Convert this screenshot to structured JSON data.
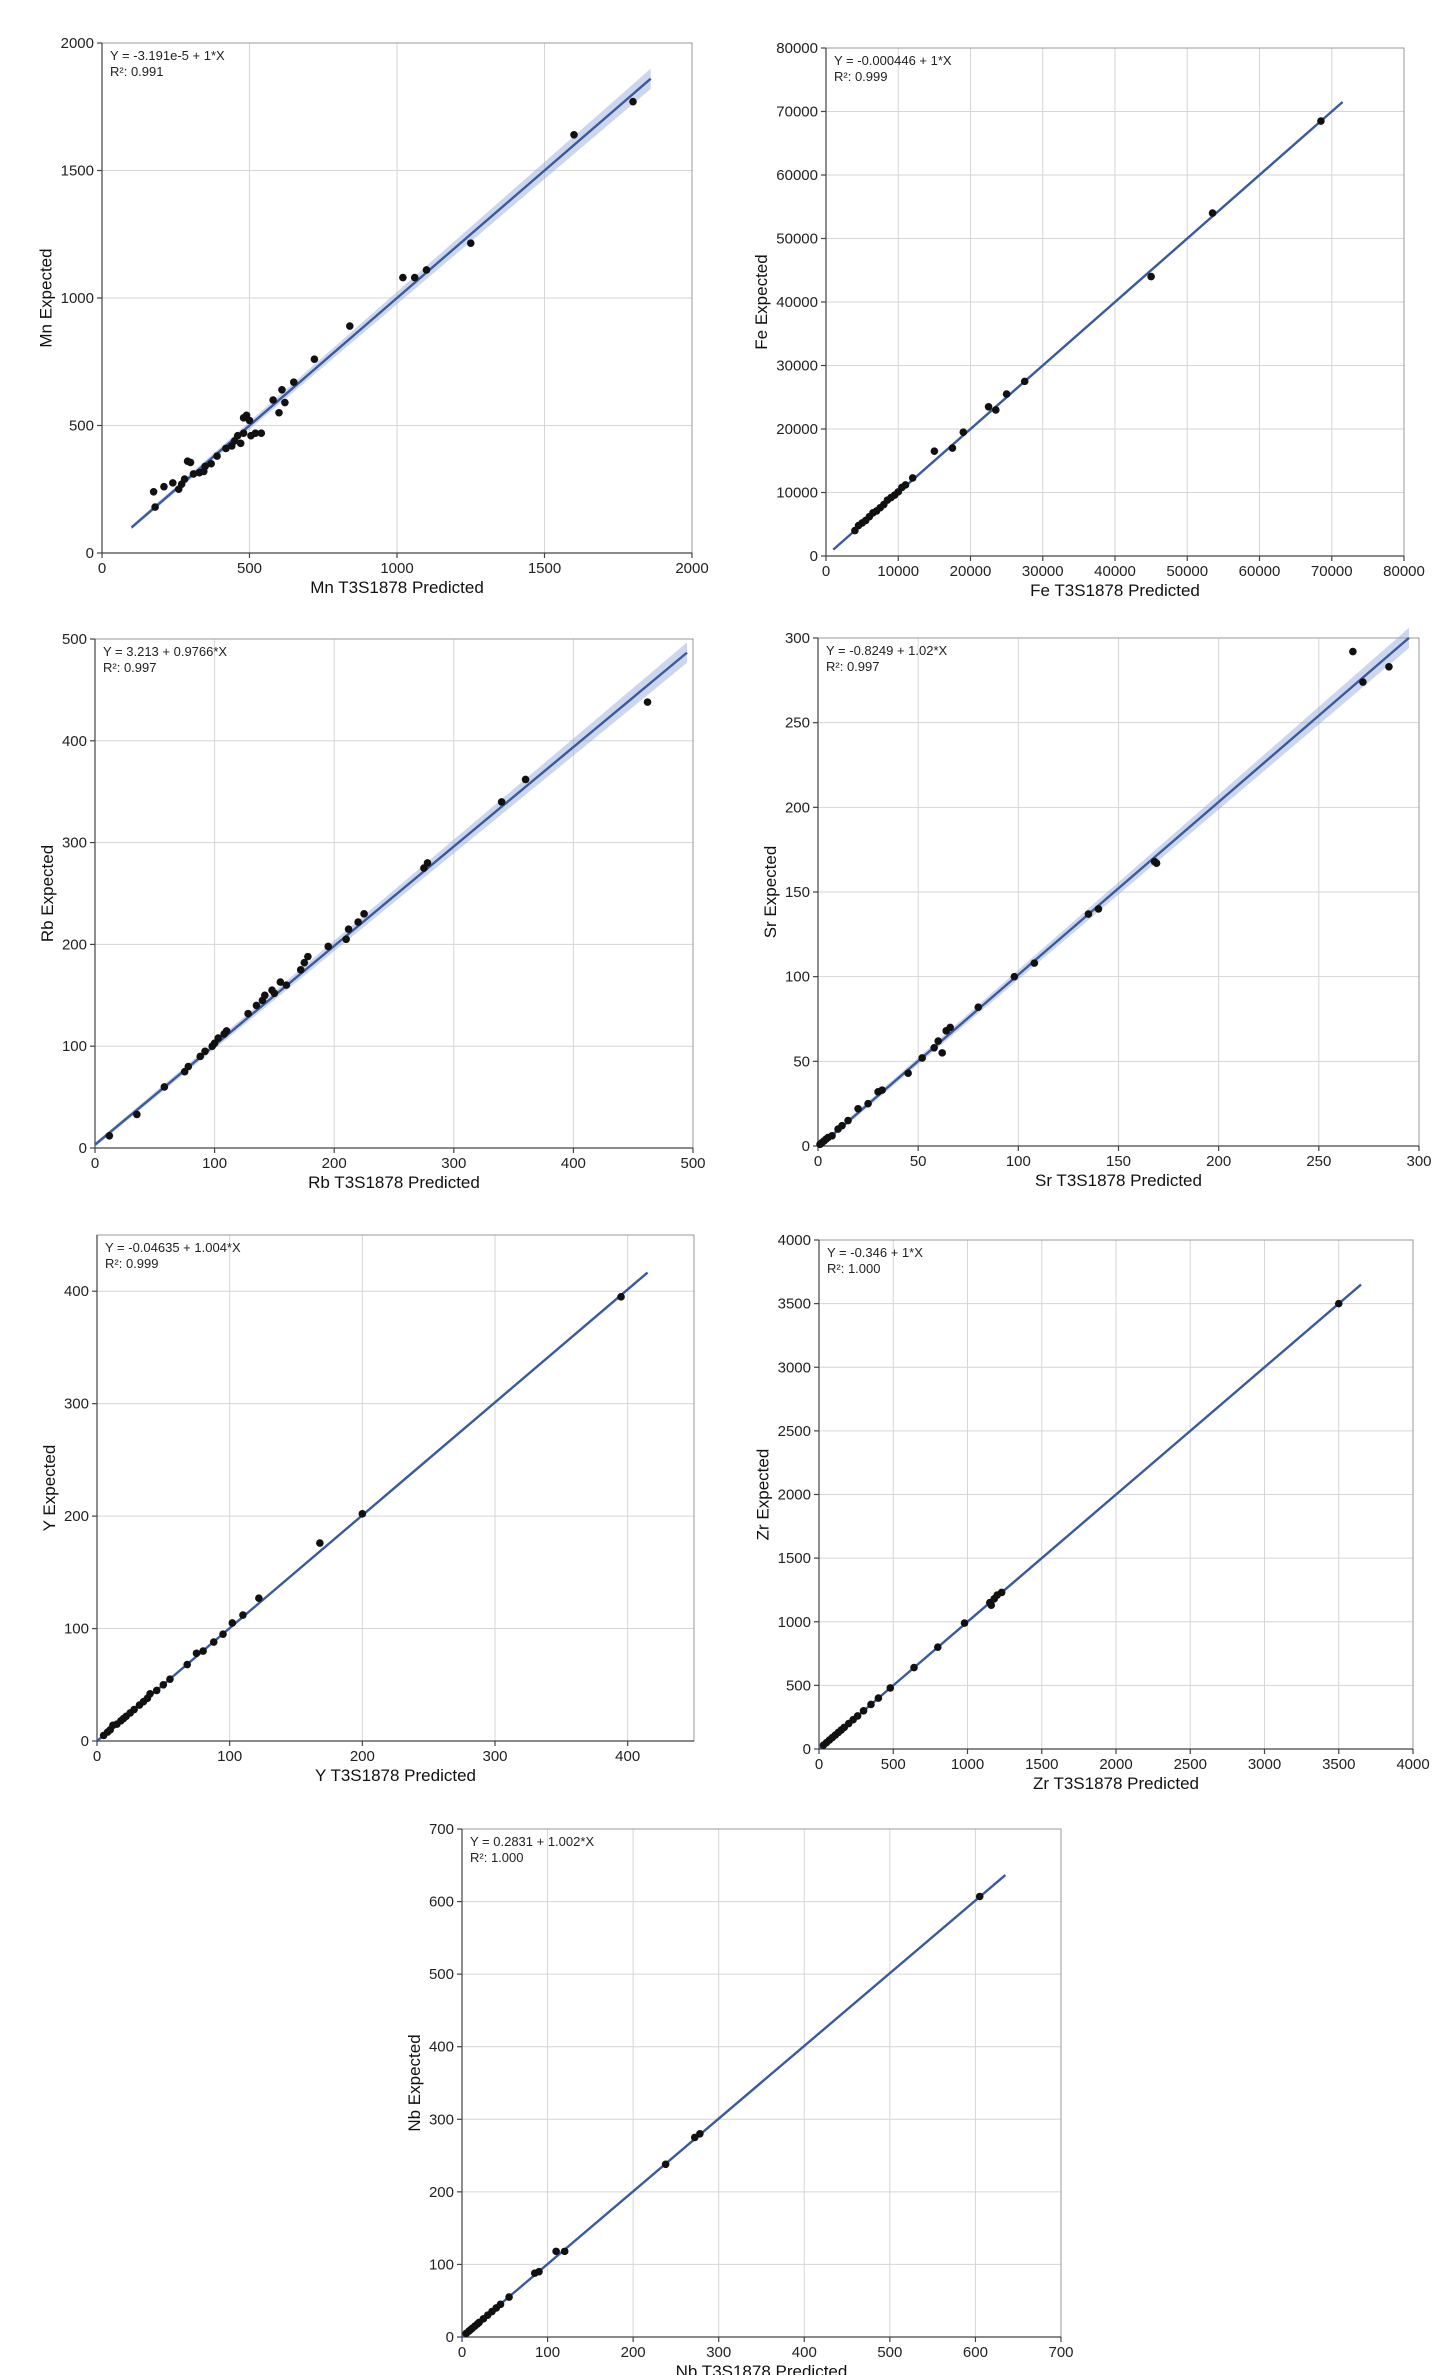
{
  "chart_data": [
    {
      "type": "scatter",
      "equation": "Y = -3.191e-5 + 1*X",
      "r2": "R²: 0.991",
      "xlabel": "Mn T3S1878 Predicted",
      "ylabel": "Mn Expected",
      "xlim": [
        0,
        2000
      ],
      "ylim": [
        0,
        2000
      ],
      "xticks": [
        0,
        500,
        1000,
        1500,
        2000
      ],
      "yticks": [
        0,
        500,
        1000,
        1500,
        2000
      ],
      "fit": {
        "intercept": -3.191e-05,
        "slope": 1,
        "x_range": [
          100,
          1860
        ]
      },
      "band": true,
      "grid": true,
      "points": [
        [
          175,
          240
        ],
        [
          180,
          180
        ],
        [
          210,
          260
        ],
        [
          240,
          275
        ],
        [
          260,
          250
        ],
        [
          270,
          270
        ],
        [
          280,
          290
        ],
        [
          290,
          360
        ],
        [
          300,
          355
        ],
        [
          310,
          310
        ],
        [
          330,
          315
        ],
        [
          345,
          320
        ],
        [
          350,
          340
        ],
        [
          370,
          350
        ],
        [
          390,
          380
        ],
        [
          420,
          410
        ],
        [
          440,
          420
        ],
        [
          450,
          440
        ],
        [
          460,
          460
        ],
        [
          470,
          430
        ],
        [
          480,
          470
        ],
        [
          480,
          530
        ],
        [
          490,
          540
        ],
        [
          500,
          520
        ],
        [
          505,
          460
        ],
        [
          520,
          470
        ],
        [
          540,
          470
        ],
        [
          580,
          600
        ],
        [
          600,
          550
        ],
        [
          610,
          640
        ],
        [
          620,
          590
        ],
        [
          650,
          670
        ],
        [
          720,
          760
        ],
        [
          840,
          890
        ],
        [
          1020,
          1080
        ],
        [
          1060,
          1080
        ],
        [
          1100,
          1110
        ],
        [
          1250,
          1215
        ],
        [
          1600,
          1640
        ],
        [
          1800,
          1770
        ]
      ]
    },
    {
      "type": "scatter",
      "equation": "Y = -0.000446 + 1*X",
      "r2": "R²: 0.999",
      "xlabel": "Fe T3S1878 Predicted",
      "ylabel": "Fe Expected",
      "xlim": [
        0,
        80000
      ],
      "ylim": [
        0,
        80000
      ],
      "xticks": [
        0,
        10000,
        20000,
        30000,
        40000,
        50000,
        60000,
        70000,
        80000
      ],
      "yticks": [
        0,
        10000,
        20000,
        30000,
        40000,
        50000,
        60000,
        70000,
        80000
      ],
      "fit": {
        "intercept": -0.000446,
        "slope": 1,
        "x_range": [
          1000,
          71500
        ]
      },
      "band": false,
      "grid": true,
      "points": [
        [
          4000,
          4000
        ],
        [
          4500,
          4800
        ],
        [
          5000,
          5200
        ],
        [
          5500,
          5600
        ],
        [
          6000,
          6200
        ],
        [
          6500,
          6800
        ],
        [
          7000,
          7100
        ],
        [
          7500,
          7600
        ],
        [
          8000,
          8100
        ],
        [
          8500,
          8800
        ],
        [
          9000,
          9200
        ],
        [
          9500,
          9600
        ],
        [
          10000,
          10100
        ],
        [
          10500,
          10800
        ],
        [
          11000,
          11200
        ],
        [
          12000,
          12300
        ],
        [
          15000,
          16500
        ],
        [
          17500,
          17000
        ],
        [
          19000,
          19500
        ],
        [
          22500,
          23500
        ],
        [
          23500,
          23000
        ],
        [
          25000,
          25500
        ],
        [
          27500,
          27500
        ],
        [
          45000,
          44000
        ],
        [
          53500,
          54000
        ],
        [
          68500,
          68500
        ]
      ]
    },
    {
      "type": "scatter",
      "equation": "Y = 3.213 + 0.9766*X",
      "r2": "R²: 0.997",
      "xlabel": "Rb T3S1878 Predicted",
      "ylabel": "Rb Expected",
      "xlim": [
        0,
        500
      ],
      "ylim": [
        0,
        500
      ],
      "xticks": [
        0,
        100,
        200,
        300,
        400,
        500
      ],
      "yticks": [
        0,
        100,
        200,
        300,
        400,
        500
      ],
      "fit": {
        "intercept": 3.213,
        "slope": 0.9766,
        "x_range": [
          0,
          495
        ]
      },
      "band": true,
      "grid": true,
      "points": [
        [
          12,
          12
        ],
        [
          35,
          33
        ],
        [
          58,
          60
        ],
        [
          75,
          75
        ],
        [
          78,
          80
        ],
        [
          88,
          90
        ],
        [
          92,
          95
        ],
        [
          98,
          100
        ],
        [
          100,
          103
        ],
        [
          103,
          108
        ],
        [
          108,
          112
        ],
        [
          110,
          115
        ],
        [
          128,
          132
        ],
        [
          135,
          140
        ],
        [
          140,
          145
        ],
        [
          142,
          150
        ],
        [
          148,
          155
        ],
        [
          150,
          152
        ],
        [
          155,
          163
        ],
        [
          160,
          160
        ],
        [
          172,
          175
        ],
        [
          175,
          182
        ],
        [
          178,
          188
        ],
        [
          195,
          198
        ],
        [
          210,
          205
        ],
        [
          212,
          215
        ],
        [
          220,
          222
        ],
        [
          225,
          230
        ],
        [
          275,
          275
        ],
        [
          278,
          280
        ],
        [
          340,
          340
        ],
        [
          360,
          362
        ],
        [
          462,
          438
        ]
      ]
    },
    {
      "type": "scatter",
      "equation": "Y = -0.8249 + 1.02*X",
      "r2": "R²: 0.997",
      "xlabel": "Sr T3S1878 Predicted",
      "ylabel": "Sr Expected",
      "xlim": [
        0,
        300
      ],
      "ylim": [
        0,
        300
      ],
      "xticks": [
        0,
        50,
        100,
        150,
        200,
        250,
        300
      ],
      "yticks": [
        0,
        50,
        100,
        150,
        200,
        250,
        300
      ],
      "fit": {
        "intercept": -0.8249,
        "slope": 1.02,
        "x_range": [
          0,
          295
        ]
      },
      "band": true,
      "grid": true,
      "points": [
        [
          1,
          1
        ],
        [
          2,
          2
        ],
        [
          3,
          3
        ],
        [
          4,
          4
        ],
        [
          5,
          5
        ],
        [
          7,
          6
        ],
        [
          10,
          10
        ],
        [
          12,
          12
        ],
        [
          15,
          15
        ],
        [
          20,
          22
        ],
        [
          25,
          25
        ],
        [
          30,
          32
        ],
        [
          32,
          33
        ],
        [
          45,
          43
        ],
        [
          52,
          52
        ],
        [
          58,
          58
        ],
        [
          60,
          62
        ],
        [
          62,
          55
        ],
        [
          64,
          68
        ],
        [
          66,
          70
        ],
        [
          80,
          82
        ],
        [
          98,
          100
        ],
        [
          108,
          108
        ],
        [
          135,
          137
        ],
        [
          140,
          140
        ],
        [
          168,
          168
        ],
        [
          169,
          167
        ],
        [
          267,
          292
        ],
        [
          272,
          274
        ],
        [
          285,
          283
        ]
      ]
    },
    {
      "type": "scatter",
      "equation": "Y = -0.04635 + 1.004*X",
      "r2": "R²: 0.999",
      "xlabel": "Y T3S1878 Predicted",
      "ylabel": "Y Expected",
      "xlim": [
        0,
        450
      ],
      "ylim": [
        0,
        450
      ],
      "xticks": [
        0,
        100,
        200,
        300,
        400
      ],
      "yticks": [
        0,
        100,
        200,
        300,
        400
      ],
      "fit": {
        "intercept": -0.04635,
        "slope": 1.004,
        "x_range": [
          0,
          415
        ]
      },
      "band": false,
      "grid": true,
      "points": [
        [
          5,
          5
        ],
        [
          8,
          8
        ],
        [
          10,
          10
        ],
        [
          12,
          14
        ],
        [
          15,
          15
        ],
        [
          18,
          18
        ],
        [
          20,
          20
        ],
        [
          22,
          22
        ],
        [
          25,
          25
        ],
        [
          28,
          28
        ],
        [
          32,
          32
        ],
        [
          35,
          35
        ],
        [
          38,
          38
        ],
        [
          40,
          42
        ],
        [
          45,
          45
        ],
        [
          50,
          50
        ],
        [
          55,
          55
        ],
        [
          68,
          68
        ],
        [
          75,
          78
        ],
        [
          80,
          80
        ],
        [
          88,
          88
        ],
        [
          95,
          95
        ],
        [
          102,
          105
        ],
        [
          110,
          112
        ],
        [
          122,
          127
        ],
        [
          168,
          176
        ],
        [
          200,
          202
        ],
        [
          395,
          395
        ]
      ]
    },
    {
      "type": "scatter",
      "equation": "Y = -0.346 + 1*X",
      "r2": "R²: 1.000",
      "xlabel": "Zr T3S1878 Predicted",
      "ylabel": "Zr Expected",
      "xlim": [
        0,
        4000
      ],
      "ylim": [
        0,
        4000
      ],
      "xticks": [
        0,
        500,
        1000,
        1500,
        2000,
        2500,
        3000,
        3500,
        4000
      ],
      "yticks": [
        0,
        500,
        1000,
        1500,
        2000,
        2500,
        3000,
        3500,
        4000
      ],
      "fit": {
        "intercept": -0.346,
        "slope": 1,
        "x_range": [
          0,
          3650
        ]
      },
      "band": false,
      "grid": true,
      "points": [
        [
          30,
          30
        ],
        [
          50,
          50
        ],
        [
          70,
          70
        ],
        [
          90,
          90
        ],
        [
          110,
          110
        ],
        [
          130,
          130
        ],
        [
          150,
          150
        ],
        [
          170,
          170
        ],
        [
          200,
          200
        ],
        [
          230,
          230
        ],
        [
          260,
          260
        ],
        [
          300,
          300
        ],
        [
          350,
          350
        ],
        [
          400,
          400
        ],
        [
          480,
          480
        ],
        [
          640,
          640
        ],
        [
          800,
          800
        ],
        [
          980,
          990
        ],
        [
          1150,
          1150
        ],
        [
          1160,
          1130
        ],
        [
          1180,
          1180
        ],
        [
          1200,
          1210
        ],
        [
          1230,
          1230
        ],
        [
          3500,
          3500
        ]
      ]
    },
    {
      "type": "scatter",
      "equation": "Y = 0.2831 + 1.002*X",
      "r2": "R²: 1.000",
      "xlabel": "Nb T3S1878 Predicted",
      "ylabel": "Nb Expected",
      "xlim": [
        0,
        700
      ],
      "ylim": [
        0,
        700
      ],
      "xticks": [
        0,
        100,
        200,
        300,
        400,
        500,
        600,
        700
      ],
      "yticks": [
        0,
        100,
        200,
        300,
        400,
        500,
        600,
        700
      ],
      "fit": {
        "intercept": 0.2831,
        "slope": 1.002,
        "x_range": [
          0,
          635
        ]
      },
      "band": false,
      "grid": true,
      "points": [
        [
          5,
          5
        ],
        [
          8,
          8
        ],
        [
          10,
          10
        ],
        [
          12,
          12
        ],
        [
          15,
          15
        ],
        [
          18,
          18
        ],
        [
          20,
          20
        ],
        [
          25,
          25
        ],
        [
          30,
          30
        ],
        [
          35,
          35
        ],
        [
          40,
          40
        ],
        [
          45,
          45
        ],
        [
          55,
          55
        ],
        [
          85,
          88
        ],
        [
          90,
          90
        ],
        [
          110,
          118
        ],
        [
          120,
          118
        ],
        [
          238,
          238
        ],
        [
          272,
          275
        ],
        [
          278,
          280
        ],
        [
          605,
          607
        ]
      ]
    }
  ]
}
